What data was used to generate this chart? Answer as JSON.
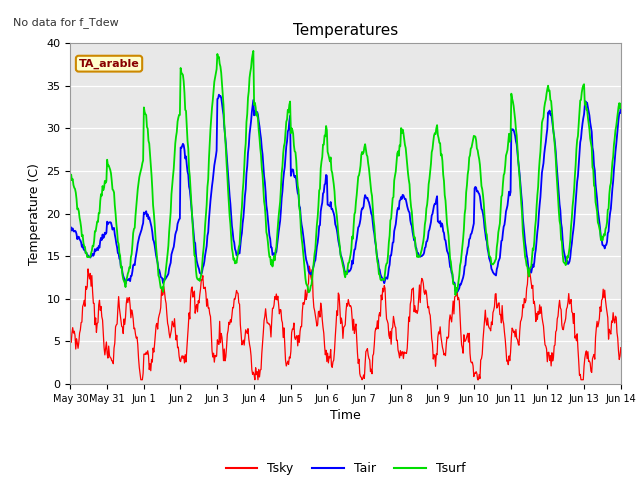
{
  "title": "Temperatures",
  "xlabel": "Time",
  "ylabel": "Temperature (C)",
  "top_left_text": "No data for f_Tdew",
  "box_label": "TA_arable",
  "ylim": [
    0,
    40
  ],
  "xlim_days": [
    0,
    15
  ],
  "fig_bg_color": "#ffffff",
  "plot_bg_color": "#e8e8e8",
  "line_colors": {
    "Tsky": "#ff0000",
    "Tair": "#0000ff",
    "Tsurf": "#00dd00"
  },
  "tick_labels": [
    "May 30",
    "May 31",
    "Jun 1",
    "Jun 2",
    "Jun 3",
    "Jun 4",
    "Jun 5",
    "Jun 6",
    "Jun 7",
    "Jun 8",
    "Jun 9",
    "Jun 10",
    "Jun 11",
    "Jun 12",
    "Jun 13",
    "Jun 14"
  ],
  "tick_positions": [
    0,
    1,
    2,
    3,
    4,
    5,
    6,
    7,
    8,
    9,
    10,
    11,
    12,
    13,
    14,
    15
  ],
  "yticks": [
    0,
    5,
    10,
    15,
    20,
    25,
    30,
    35,
    40
  ],
  "legend_labels": [
    "Tsky",
    "Tair",
    "Tsurf"
  ],
  "tair_daily_peaks": [
    18,
    19,
    20,
    28,
    34,
    32,
    25,
    21,
    22,
    22,
    19,
    23,
    30,
    32,
    33
  ],
  "tair_daily_mins": [
    15,
    12,
    12,
    13,
    15,
    15,
    13,
    13,
    12,
    15,
    11,
    13,
    13,
    14,
    16
  ],
  "tsurf_daily_peaks": [
    24,
    26,
    32,
    37,
    39,
    33,
    30,
    27,
    28,
    30,
    29,
    29,
    34,
    35,
    33
  ],
  "tsurf_daily_mins": [
    15,
    12,
    11,
    12,
    14,
    14,
    11,
    13,
    12,
    15,
    11,
    14,
    13,
    14,
    17
  ],
  "tsky_base": 6.5,
  "tsky_amp": 3.5,
  "tsky_noise": 1.2
}
